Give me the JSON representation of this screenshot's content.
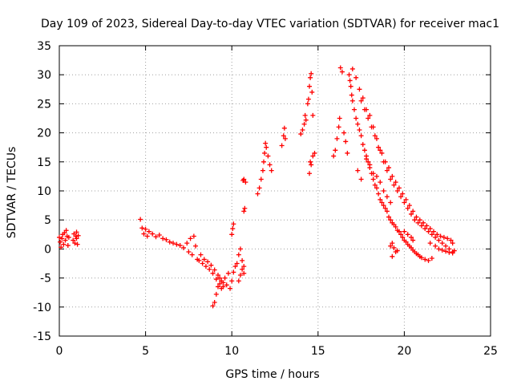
{
  "chart_data": {
    "type": "scatter",
    "title": "Day 109 of 2023, Sidereal Day-to-day VTEC variation (SDTVAR) for receiver mac1",
    "xlabel": "GPS time / hours",
    "ylabel": "SDTVAR / TECUs",
    "xlim": [
      0,
      25
    ],
    "ylim": [
      -15,
      35
    ],
    "xticks": [
      0,
      5,
      10,
      15,
      20,
      25
    ],
    "yticks": [
      -15,
      -10,
      -5,
      0,
      5,
      10,
      15,
      20,
      25,
      30,
      35
    ],
    "grid": true,
    "marker": "plus",
    "marker_color": "#ff0000",
    "series": [
      {
        "name": "SDTVAR",
        "points": [
          [
            0.0,
            2.0
          ],
          [
            0.05,
            1.2
          ],
          [
            0.1,
            0.3
          ],
          [
            0.15,
            1.8
          ],
          [
            0.2,
            2.5
          ],
          [
            0.25,
            0.8
          ],
          [
            0.3,
            2.8
          ],
          [
            0.35,
            1.5
          ],
          [
            0.4,
            3.2
          ],
          [
            0.45,
            2.2
          ],
          [
            0.5,
            0.6
          ],
          [
            0.55,
            2.0
          ],
          [
            0.8,
            1.5
          ],
          [
            0.85,
            2.6
          ],
          [
            0.9,
            1.0
          ],
          [
            0.95,
            2.2
          ],
          [
            1.0,
            1.8
          ],
          [
            1.05,
            0.8
          ],
          [
            1.1,
            2.3
          ],
          [
            1.0,
            2.9
          ],
          [
            4.7,
            5.1
          ],
          [
            4.8,
            3.6
          ],
          [
            4.9,
            2.6
          ],
          [
            5.0,
            3.4
          ],
          [
            5.1,
            2.2
          ],
          [
            5.2,
            3.0
          ],
          [
            5.4,
            2.6
          ],
          [
            5.6,
            2.1
          ],
          [
            5.8,
            2.4
          ],
          [
            6.0,
            1.8
          ],
          [
            6.2,
            1.6
          ],
          [
            6.4,
            1.2
          ],
          [
            6.6,
            1.0
          ],
          [
            6.8,
            0.8
          ],
          [
            7.0,
            0.6
          ],
          [
            7.2,
            0.2
          ],
          [
            7.4,
            1.0
          ],
          [
            7.5,
            -0.5
          ],
          [
            7.6,
            1.8
          ],
          [
            7.7,
            -1.0
          ],
          [
            7.8,
            2.2
          ],
          [
            7.9,
            0.5
          ],
          [
            8.0,
            -1.8
          ],
          [
            8.1,
            -2.0
          ],
          [
            8.2,
            -1.0
          ],
          [
            8.3,
            -2.5
          ],
          [
            8.4,
            -1.8
          ],
          [
            8.5,
            -3.0
          ],
          [
            8.6,
            -2.2
          ],
          [
            8.7,
            -3.5
          ],
          [
            8.8,
            -2.8
          ],
          [
            8.9,
            -4.2
          ],
          [
            9.0,
            -3.6
          ],
          [
            9.1,
            -5.2
          ],
          [
            9.2,
            -4.5
          ],
          [
            9.3,
            -6.0
          ],
          [
            9.4,
            -5.5
          ],
          [
            9.5,
            -6.5
          ],
          [
            9.6,
            -5.0
          ],
          [
            9.7,
            -6.2
          ],
          [
            9.8,
            -4.2
          ],
          [
            9.9,
            -6.8
          ],
          [
            10.0,
            -5.5
          ],
          [
            10.1,
            -4.0
          ],
          [
            10.2,
            -3.0
          ],
          [
            10.3,
            -2.5
          ],
          [
            10.4,
            -5.5
          ],
          [
            10.5,
            -4.5
          ],
          [
            10.6,
            -3.5
          ],
          [
            10.7,
            -4.2
          ],
          [
            10.4,
            -1.0
          ],
          [
            10.5,
            0.0
          ],
          [
            10.6,
            -2.0
          ],
          [
            10.7,
            -3.0
          ],
          [
            8.9,
            -9.8
          ],
          [
            9.0,
            -9.2
          ],
          [
            9.1,
            -7.8
          ],
          [
            9.2,
            -6.5
          ],
          [
            9.3,
            -5.0
          ],
          [
            9.4,
            -6.8
          ],
          [
            9.5,
            -5.8
          ],
          [
            10.0,
            2.5
          ],
          [
            10.05,
            3.5
          ],
          [
            10.1,
            4.3
          ],
          [
            10.7,
            6.5
          ],
          [
            10.75,
            7.0
          ],
          [
            10.65,
            11.8
          ],
          [
            10.7,
            12.0
          ],
          [
            10.8,
            11.5
          ],
          [
            11.5,
            9.5
          ],
          [
            11.6,
            10.5
          ],
          [
            11.7,
            12.0
          ],
          [
            11.8,
            13.5
          ],
          [
            11.85,
            15.0
          ],
          [
            11.9,
            16.5
          ],
          [
            11.95,
            18.2
          ],
          [
            12.0,
            17.5
          ],
          [
            12.1,
            16.0
          ],
          [
            12.2,
            14.5
          ],
          [
            12.3,
            13.5
          ],
          [
            12.9,
            17.8
          ],
          [
            13.0,
            19.5
          ],
          [
            13.05,
            20.8
          ],
          [
            13.1,
            19.0
          ],
          [
            14.0,
            19.8
          ],
          [
            14.1,
            20.5
          ],
          [
            14.2,
            21.5
          ],
          [
            14.25,
            23.0
          ],
          [
            14.3,
            22.2
          ],
          [
            14.5,
            13.0
          ],
          [
            14.55,
            15.0
          ],
          [
            14.6,
            14.5
          ],
          [
            14.7,
            16.0
          ],
          [
            14.8,
            16.5
          ],
          [
            14.4,
            25.0
          ],
          [
            14.45,
            25.8
          ],
          [
            14.5,
            28.0
          ],
          [
            14.55,
            29.5
          ],
          [
            14.6,
            30.2
          ],
          [
            14.65,
            27.0
          ],
          [
            14.7,
            23.0
          ],
          [
            15.9,
            16.0
          ],
          [
            16.0,
            17.0
          ],
          [
            16.1,
            19.0
          ],
          [
            16.2,
            21.0
          ],
          [
            16.25,
            22.5
          ],
          [
            16.3,
            31.2
          ],
          [
            16.4,
            30.5
          ],
          [
            16.5,
            20.0
          ],
          [
            16.6,
            18.5
          ],
          [
            16.7,
            16.5
          ],
          [
            16.8,
            30.0
          ],
          [
            16.85,
            29.0
          ],
          [
            16.9,
            28.0
          ],
          [
            16.95,
            26.5
          ],
          [
            17.0,
            25.5
          ],
          [
            17.1,
            24.0
          ],
          [
            17.2,
            22.5
          ],
          [
            17.3,
            21.5
          ],
          [
            17.4,
            20.5
          ],
          [
            17.5,
            19.5
          ],
          [
            17.6,
            18.0
          ],
          [
            17.7,
            17.0
          ],
          [
            17.8,
            16.0
          ],
          [
            17.9,
            15.0
          ],
          [
            18.0,
            14.0
          ],
          [
            18.1,
            13.0
          ],
          [
            18.2,
            12.0
          ],
          [
            18.3,
            11.0
          ],
          [
            18.4,
            10.5
          ],
          [
            18.5,
            9.5
          ],
          [
            18.6,
            8.5
          ],
          [
            18.7,
            8.0
          ],
          [
            18.8,
            7.5
          ],
          [
            18.9,
            7.0
          ],
          [
            19.0,
            6.5
          ],
          [
            19.1,
            5.5
          ],
          [
            19.2,
            5.0
          ],
          [
            19.3,
            4.5
          ],
          [
            19.4,
            4.2
          ],
          [
            19.5,
            3.8
          ],
          [
            19.6,
            3.2
          ],
          [
            19.7,
            3.0
          ],
          [
            19.8,
            2.5
          ],
          [
            19.9,
            2.0
          ],
          [
            20.0,
            1.5
          ],
          [
            20.1,
            1.2
          ],
          [
            20.2,
            0.8
          ],
          [
            20.3,
            0.5
          ],
          [
            20.4,
            0.2
          ],
          [
            20.5,
            -0.2
          ],
          [
            20.6,
            -0.5
          ],
          [
            20.7,
            -0.8
          ],
          [
            20.8,
            -1.0
          ],
          [
            20.9,
            -1.3
          ],
          [
            21.0,
            -1.5
          ],
          [
            21.2,
            -1.8
          ],
          [
            21.4,
            -2.0
          ],
          [
            21.6,
            -1.6
          ],
          [
            17.0,
            31.0
          ],
          [
            17.2,
            29.5
          ],
          [
            17.4,
            27.5
          ],
          [
            17.6,
            26.0
          ],
          [
            17.8,
            24.0
          ],
          [
            18.0,
            23.0
          ],
          [
            18.2,
            21.0
          ],
          [
            18.4,
            19.0
          ],
          [
            18.6,
            17.0
          ],
          [
            18.8,
            15.0
          ],
          [
            19.0,
            13.5
          ],
          [
            19.2,
            12.0
          ],
          [
            19.4,
            11.0
          ],
          [
            19.6,
            10.0
          ],
          [
            19.8,
            9.0
          ],
          [
            20.0,
            8.0
          ],
          [
            20.2,
            7.0
          ],
          [
            20.4,
            6.0
          ],
          [
            20.6,
            5.0
          ],
          [
            20.8,
            4.5
          ],
          [
            21.0,
            4.0
          ],
          [
            21.2,
            3.5
          ],
          [
            21.4,
            3.0
          ],
          [
            21.6,
            2.5
          ],
          [
            21.8,
            2.0
          ],
          [
            22.0,
            1.5
          ],
          [
            22.2,
            1.0
          ],
          [
            22.4,
            0.5
          ],
          [
            22.6,
            0.0
          ],
          [
            22.8,
            -0.5
          ],
          [
            17.5,
            25.5
          ],
          [
            17.7,
            24.0
          ],
          [
            17.9,
            22.5
          ],
          [
            18.1,
            21.0
          ],
          [
            18.3,
            19.5
          ],
          [
            18.5,
            17.5
          ],
          [
            18.7,
            16.5
          ],
          [
            18.9,
            15.0
          ],
          [
            19.1,
            14.0
          ],
          [
            19.3,
            12.5
          ],
          [
            19.5,
            11.5
          ],
          [
            19.7,
            10.5
          ],
          [
            19.9,
            9.5
          ],
          [
            20.1,
            8.5
          ],
          [
            20.3,
            7.5
          ],
          [
            20.5,
            6.5
          ],
          [
            20.7,
            5.5
          ],
          [
            20.9,
            5.0
          ],
          [
            21.1,
            4.5
          ],
          [
            21.3,
            4.0
          ],
          [
            21.5,
            3.5
          ],
          [
            21.7,
            3.0
          ],
          [
            21.9,
            2.5
          ],
          [
            22.1,
            2.2
          ],
          [
            22.3,
            2.0
          ],
          [
            22.5,
            1.8
          ],
          [
            22.7,
            1.5
          ],
          [
            22.8,
            1.0
          ],
          [
            17.3,
            13.5
          ],
          [
            17.5,
            12.0
          ],
          [
            17.8,
            15.5
          ],
          [
            18.0,
            14.5
          ],
          [
            18.2,
            13.0
          ],
          [
            18.4,
            12.5
          ],
          [
            18.6,
            11.5
          ],
          [
            18.8,
            10.0
          ],
          [
            19.0,
            9.0
          ],
          [
            19.2,
            8.0
          ],
          [
            19.2,
            0.5
          ],
          [
            19.3,
            1.0
          ],
          [
            19.4,
            0.2
          ],
          [
            19.3,
            -1.3
          ],
          [
            19.5,
            -0.5
          ],
          [
            19.6,
            -0.3
          ],
          [
            20.0,
            3.0
          ],
          [
            20.2,
            2.5
          ],
          [
            20.4,
            2.0
          ],
          [
            20.5,
            1.5
          ],
          [
            21.5,
            1.0
          ],
          [
            21.8,
            0.5
          ],
          [
            22.0,
            0.0
          ],
          [
            22.2,
            -0.2
          ],
          [
            22.4,
            -0.4
          ],
          [
            22.6,
            -0.6
          ],
          [
            22.8,
            -0.7
          ],
          [
            22.9,
            -0.3
          ]
        ]
      }
    ]
  }
}
